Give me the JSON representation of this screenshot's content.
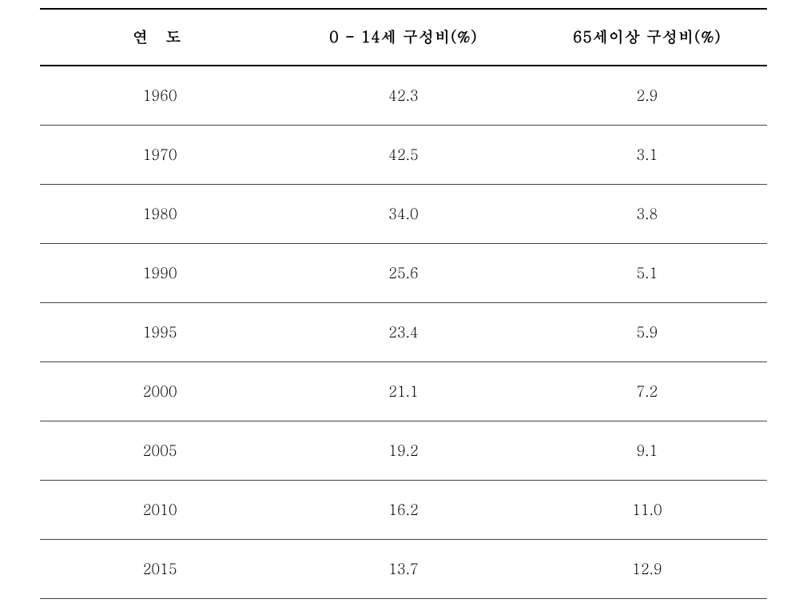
{
  "table": {
    "type": "table",
    "background_color": "#ffffff",
    "border_color_thick": "#000000",
    "border_color_thin": "#444444",
    "border_width_thick": 2.5,
    "border_width_thin": 1,
    "header_fontsize": 19,
    "cell_fontsize": 18,
    "text_color": "#000000",
    "columns": [
      {
        "key": "year",
        "label": "연  도",
        "width_pct": 33,
        "align": "center"
      },
      {
        "key": "young",
        "label": "0 - 14세 구성비(%)",
        "width_pct": 34,
        "align": "center"
      },
      {
        "key": "old",
        "label": "65세이상 구성비(%)",
        "width_pct": 33,
        "align": "center"
      }
    ],
    "rows": [
      {
        "year": "1960",
        "young": "42.3",
        "old": "2.9"
      },
      {
        "year": "1970",
        "young": "42.5",
        "old": "3.1"
      },
      {
        "year": "1980",
        "young": "34.0",
        "old": "3.8"
      },
      {
        "year": "1990",
        "young": "25.6",
        "old": "5.1"
      },
      {
        "year": "1995",
        "young": "23.4",
        "old": "5.9"
      },
      {
        "year": "2000",
        "young": "21.1",
        "old": "7.2"
      },
      {
        "year": "2005",
        "young": "19.2",
        "old": "9.1"
      },
      {
        "year": "2010",
        "young": "16.2",
        "old": "11.0"
      },
      {
        "year": "2015",
        "young": "13.7",
        "old": "12.9"
      }
    ]
  }
}
